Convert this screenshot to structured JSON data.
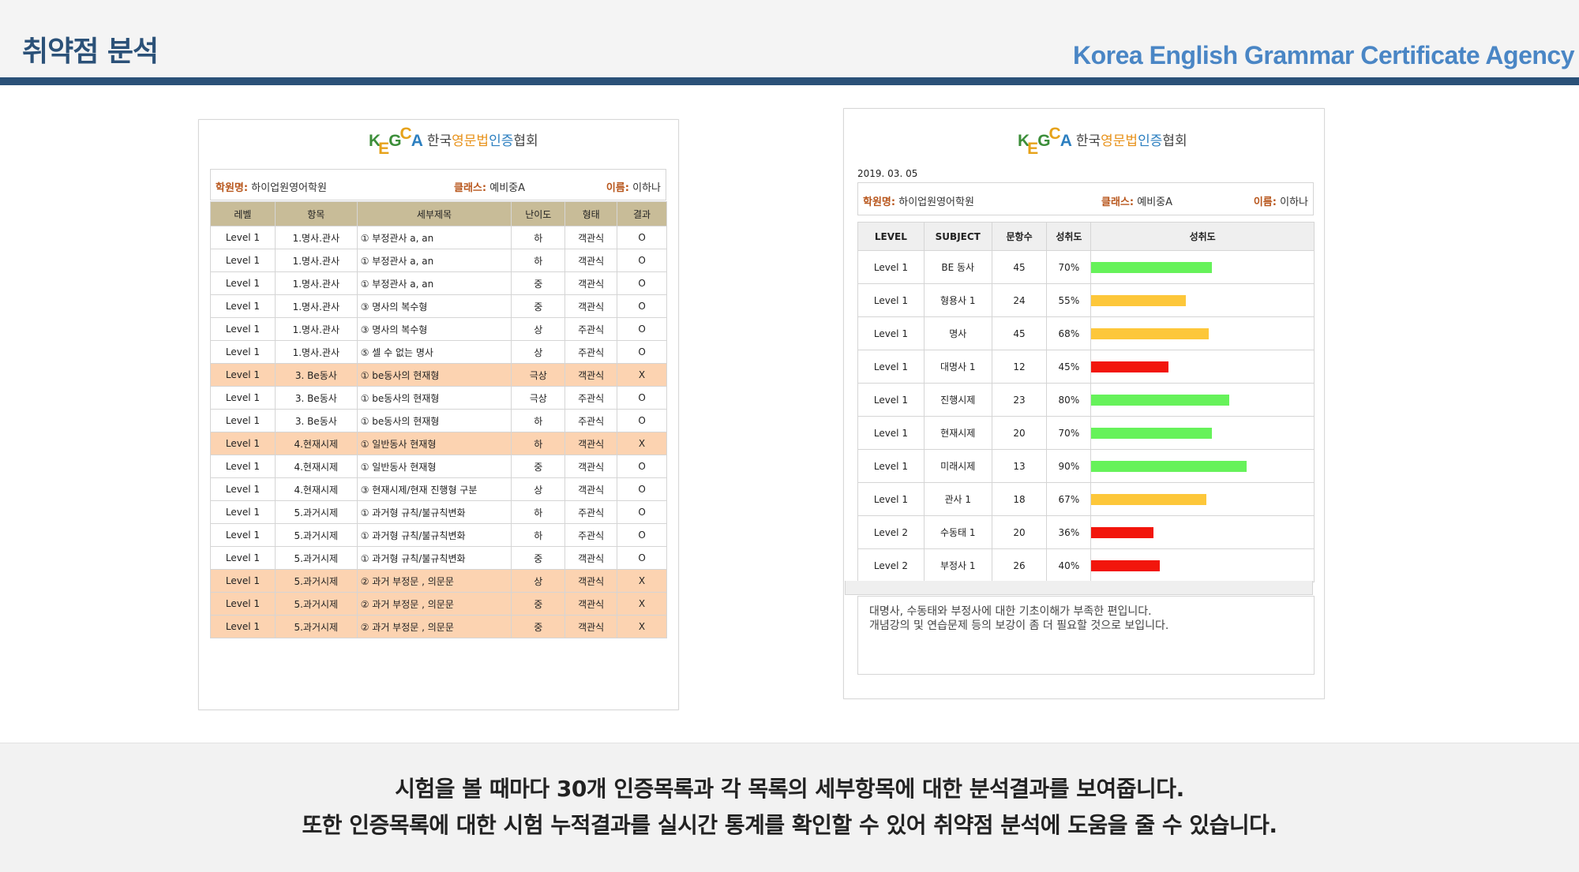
{
  "header": {
    "title": "취약점 분석",
    "agency": "Korea English Grammar Certificate Agency"
  },
  "logo": {
    "letters": [
      "K",
      "E",
      "G",
      "C",
      "A"
    ],
    "name_parts": [
      "한국",
      "영문법",
      "인증",
      "협회"
    ]
  },
  "left": {
    "info": {
      "academy_label": "학원명:",
      "academy": "하이업원영어학원",
      "class_label": "클래스:",
      "class": "예비중A",
      "name_label": "이름:",
      "name": "이하나"
    },
    "headers": [
      "레벨",
      "항목",
      "세부제목",
      "난이도",
      "형태",
      "결과"
    ],
    "rows": [
      {
        "level": "Level 1",
        "item": "1.명사.관사",
        "detail": "① 부정관사 a, an",
        "difficulty": "하",
        "type": "객관식",
        "result": "O",
        "wrong": false
      },
      {
        "level": "Level 1",
        "item": "1.명사.관사",
        "detail": "① 부정관사 a, an",
        "difficulty": "하",
        "type": "객관식",
        "result": "O",
        "wrong": false
      },
      {
        "level": "Level 1",
        "item": "1.명사.관사",
        "detail": "① 부정관사 a, an",
        "difficulty": "중",
        "type": "객관식",
        "result": "O",
        "wrong": false
      },
      {
        "level": "Level 1",
        "item": "1.명사.관사",
        "detail": "③ 명사의 복수형",
        "difficulty": "중",
        "type": "객관식",
        "result": "O",
        "wrong": false
      },
      {
        "level": "Level 1",
        "item": "1.명사.관사",
        "detail": "③ 명사의 복수형",
        "difficulty": "상",
        "type": "주관식",
        "result": "O",
        "wrong": false
      },
      {
        "level": "Level 1",
        "item": "1.명사.관사",
        "detail": "⑤ 셀 수 없는 명사",
        "difficulty": "상",
        "type": "주관식",
        "result": "O",
        "wrong": false
      },
      {
        "level": "Level 1",
        "item": "3. Be동사",
        "detail": "① be동사의 현재형",
        "difficulty": "극상",
        "type": "객관식",
        "result": "X",
        "wrong": true
      },
      {
        "level": "Level 1",
        "item": "3. Be동사",
        "detail": "① be동사의 현재형",
        "difficulty": "극상",
        "type": "주관식",
        "result": "O",
        "wrong": false
      },
      {
        "level": "Level 1",
        "item": "3. Be동사",
        "detail": "① be동사의 현재형",
        "difficulty": "하",
        "type": "주관식",
        "result": "O",
        "wrong": false
      },
      {
        "level": "Level 1",
        "item": "4.현재시제",
        "detail": "① 일반동사 현재형",
        "difficulty": "하",
        "type": "객관식",
        "result": "X",
        "wrong": true
      },
      {
        "level": "Level 1",
        "item": "4.현재시제",
        "detail": "① 일반동사 현재형",
        "difficulty": "중",
        "type": "객관식",
        "result": "O",
        "wrong": false
      },
      {
        "level": "Level 1",
        "item": "4.현재시제",
        "detail": "③ 현재시제/현재 진행형 구분",
        "difficulty": "상",
        "type": "객관식",
        "result": "O",
        "wrong": false
      },
      {
        "level": "Level 1",
        "item": "5.과거시제",
        "detail": "① 과거형 규칙/불규칙변화",
        "difficulty": "하",
        "type": "주관식",
        "result": "O",
        "wrong": false
      },
      {
        "level": "Level 1",
        "item": "5.과거시제",
        "detail": "① 과거형 규칙/불규칙변화",
        "difficulty": "하",
        "type": "주관식",
        "result": "O",
        "wrong": false
      },
      {
        "level": "Level 1",
        "item": "5.과거시제",
        "detail": "① 과거형 규칙/불규칙변화",
        "difficulty": "중",
        "type": "객관식",
        "result": "O",
        "wrong": false
      },
      {
        "level": "Level 1",
        "item": "5.과거시제",
        "detail": "② 과거 부정문 , 의문문",
        "difficulty": "상",
        "type": "객관식",
        "result": "X",
        "wrong": true
      },
      {
        "level": "Level 1",
        "item": "5.과거시제",
        "detail": "② 과거 부정문 , 의문문",
        "difficulty": "중",
        "type": "객관식",
        "result": "X",
        "wrong": true
      },
      {
        "level": "Level 1",
        "item": "5.과거시제",
        "detail": "② 과거 부정문 , 의문문",
        "difficulty": "중",
        "type": "객관식",
        "result": "X",
        "wrong": true
      }
    ]
  },
  "right": {
    "date": "2019. 03. 05",
    "info": {
      "academy_label": "학원명:",
      "academy": "하이업원영어학원",
      "class_label": "클래스:",
      "class": "예비중A",
      "name_label": "이름:",
      "name": "이하나"
    },
    "headers": [
      "LEVEL",
      "SUBJECT",
      "문항수",
      "성취도",
      "성취도"
    ],
    "rows": [
      {
        "level": "Level 1",
        "subject": "BE 동사",
        "count": "45",
        "pct_text": "70%",
        "pct": 70,
        "color": "#66f25a"
      },
      {
        "level": "Level 1",
        "subject": "형용사 1",
        "count": "24",
        "pct_text": "55%",
        "pct": 55,
        "color": "#fdc73a"
      },
      {
        "level": "Level 1",
        "subject": "명사",
        "count": "45",
        "pct_text": "68%",
        "pct": 68,
        "color": "#fdc73a"
      },
      {
        "level": "Level 1",
        "subject": "대명사 1",
        "count": "12",
        "pct_text": "45%",
        "pct": 45,
        "color": "#f2160c"
      },
      {
        "level": "Level 1",
        "subject": "진행시제",
        "count": "23",
        "pct_text": "80%",
        "pct": 80,
        "color": "#66f25a"
      },
      {
        "level": "Level 1",
        "subject": "현재시제",
        "count": "20",
        "pct_text": "70%",
        "pct": 70,
        "color": "#66f25a"
      },
      {
        "level": "Level 1",
        "subject": "미래시제",
        "count": "13",
        "pct_text": "90%",
        "pct": 90,
        "color": "#66f25a"
      },
      {
        "level": "Level 1",
        "subject": "관사 1",
        "count": "18",
        "pct_text": "67%",
        "pct": 67,
        "color": "#fdc73a"
      },
      {
        "level": "Level 2",
        "subject": "수동태 1",
        "count": "20",
        "pct_text": "36%",
        "pct": 36,
        "color": "#f2160c"
      },
      {
        "level": "Level 2",
        "subject": "부정사 1",
        "count": "26",
        "pct_text": "40%",
        "pct": 40,
        "color": "#f2160c"
      }
    ],
    "comment_lines": [
      "대명사, 수동태와 부정사에 대한 기초이해가 부족한 편입니다.",
      "개념강의 및 연습문제 등의 보강이 좀 더 필요할 것으로 보입니다."
    ]
  },
  "footer": {
    "line1": "시험을 볼 때마다 30개 인증목록과 각 목록의 세부항목에 대한 분석결과를 보여줍니다.",
    "line2": "또한 인증목록에 대한 시험 누적결과를 실시간 통계를 확인할 수 있어 취약점 분석에 도움을 줄 수 있습니다."
  }
}
